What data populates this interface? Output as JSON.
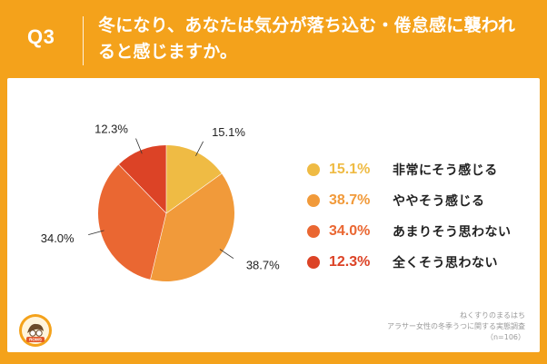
{
  "header": {
    "question_label": "Q3",
    "question_text": "冬になり、あなたは気分が落ち込む・倦怠感に襲われると感じますか。"
  },
  "colors": {
    "background": "#f4a21b",
    "card": "#ffffff"
  },
  "chart_data": {
    "type": "pie",
    "title": "冬になり、あなたは気分が落ち込む・倦怠感に襲われると感じますか。",
    "categories": [
      "非常にそう感じる",
      "ややそう感じる",
      "あまりそう思わない",
      "全くそう思わない"
    ],
    "values": [
      15.1,
      38.7,
      34.0,
      12.3
    ],
    "display_labels": [
      "15.1%",
      "38.7%",
      "34.0%",
      "12.3%"
    ],
    "colors": [
      "#efbb44",
      "#f19a3a",
      "#ea6732",
      "#dc4326"
    ],
    "start": "top",
    "direction": "clockwise",
    "legend_position": "right"
  },
  "legend": [
    {
      "pct": "15.1%",
      "label": "非常にそう感じる",
      "color": "#efbb44"
    },
    {
      "pct": "38.7%",
      "label": "ややそう感じる",
      "color": "#f19a3a"
    },
    {
      "pct": "34.0%",
      "label": "あまりそう思わない",
      "color": "#ea6732"
    },
    {
      "pct": "12.3%",
      "label": "全くそう思わない",
      "color": "#dc4326"
    }
  ],
  "credit": {
    "line1": "ねくすりのまるはち",
    "line2": "アラサー女性の冬季うつに関する実態調査",
    "line3": "（n=106）"
  },
  "logo": {
    "icon": "company-logo-icon",
    "text": "ROMS"
  }
}
